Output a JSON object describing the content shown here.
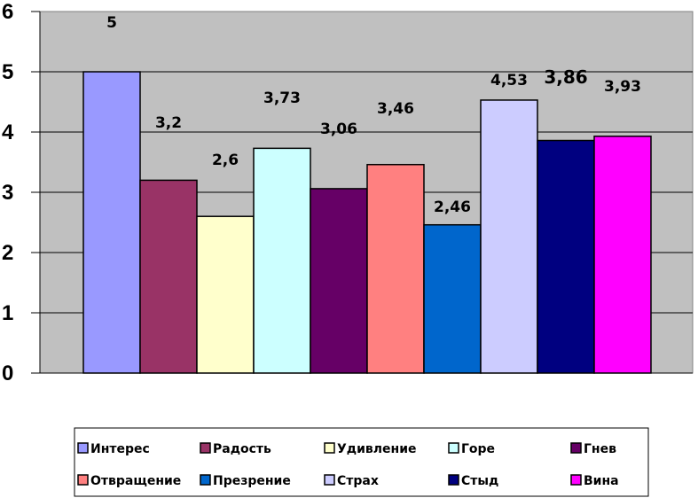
{
  "chart_data": {
    "type": "bar",
    "title": "",
    "xlabel": "",
    "ylabel": "",
    "ylim": [
      0,
      6
    ],
    "yticks": [
      "0",
      "1",
      "2",
      "3",
      "4",
      "5",
      "6"
    ],
    "grid": true,
    "legend_position": "bottom",
    "categories": [
      "Интерес",
      "Радость",
      "Удивление",
      "Горе",
      "Гнев",
      "Отвращение",
      "Презрение",
      "Страх",
      "Стыд",
      "Вина"
    ],
    "values": [
      5,
      3.2,
      2.6,
      3.73,
      3.06,
      3.46,
      2.46,
      4.53,
      3.86,
      3.93
    ],
    "data_labels": [
      "5",
      "3,2",
      "2,6",
      "3,73",
      "3,06",
      "3,46",
      "2,46",
      "4,53",
      "3,86",
      "3,93"
    ],
    "colors": [
      "#9999ff",
      "#993366",
      "#ffffcc",
      "#ccffff",
      "#660066",
      "#ff8080",
      "#0066cc",
      "#ccccff",
      "#000080",
      "#ff00ff"
    ]
  }
}
